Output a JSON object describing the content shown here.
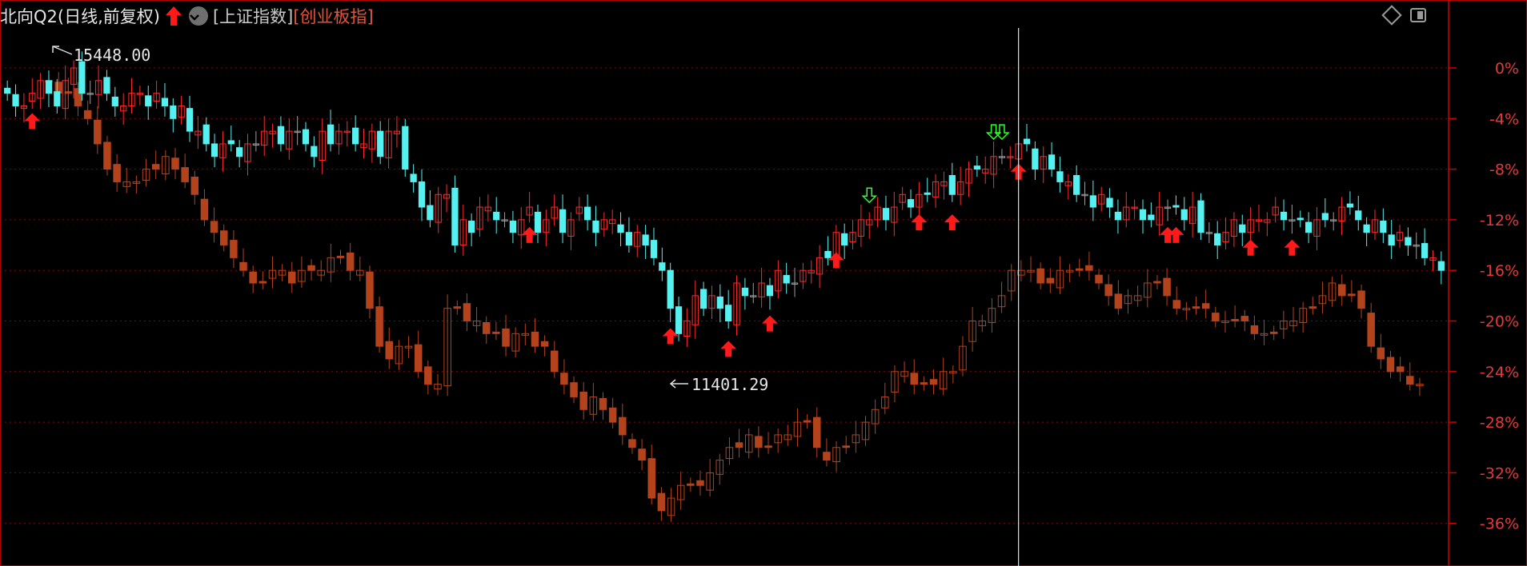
{
  "header": {
    "title": "北向Q2(日线,前复权)",
    "index1": "[上证指数]",
    "index2": "[创业板指]"
  },
  "icons": [
    "arrow-up-icon",
    "dropdown-icon",
    "diamond-icon",
    "panel-icon"
  ],
  "colors": {
    "background": "#000000",
    "grid": "#8b0000",
    "axis": "#cc0000",
    "candle_up": "#ff2a2a",
    "candle_down": "#55f0f0",
    "candle_flat": "#9e9e9e",
    "second_series": "#b4431c",
    "buy_arrow": "#ff1a1a",
    "sell_arrow": "#2cff2c",
    "crosshair": "#e0e0e0"
  },
  "annotations": {
    "high_label": "15448.00",
    "low_label": "11401.29"
  },
  "chart_data": {
    "type": "candlestick",
    "y_axis_labels": [
      "0%",
      "-4%",
      "-8%",
      "-12%",
      "-16%",
      "-20%",
      "-24%",
      "-28%",
      "-32%",
      "-36%"
    ],
    "ylim_percent": [
      -36,
      0
    ],
    "grid": true,
    "series": [
      {
        "kind": "candlestick",
        "close_percent_approx": [
          -2,
          -3,
          -3,
          -2,
          -1,
          -2,
          -3,
          -1,
          0,
          -2,
          -2,
          -1,
          -2,
          -3,
          -3,
          -2,
          -2,
          -3,
          -2,
          -3,
          -4,
          -3,
          -5,
          -5,
          -6,
          -7,
          -6,
          -6,
          -7,
          -6,
          -6,
          -5,
          -5,
          -6,
          -5,
          -5,
          -6,
          -7,
          -5,
          -6,
          -5,
          -5,
          -6,
          -6,
          -5,
          -7,
          -5,
          -5,
          -8,
          -9,
          -11,
          -12,
          -10,
          -10,
          -14,
          -12,
          -13,
          -11,
          -11,
          -12,
          -12,
          -13,
          -12,
          -11,
          -13,
          -12,
          -11,
          -13,
          -12,
          -11,
          -12,
          -13,
          -12,
          -12,
          -13,
          -14,
          -13,
          -14,
          -15,
          -16,
          -19,
          -21,
          -20,
          -18,
          -19,
          -18,
          -19,
          -20,
          -17,
          -18,
          -18,
          -17,
          -18,
          -16,
          -17,
          -17,
          -16,
          -16,
          -15,
          -15,
          -13,
          -14,
          -13,
          -12,
          -12,
          -11,
          -12,
          -11,
          -10,
          -11,
          -10,
          -10,
          -9,
          -9,
          -10,
          -9,
          -8,
          -8,
          -8,
          -7,
          -7,
          -7,
          -6,
          -6,
          -8,
          -7,
          -8,
          -9,
          -9,
          -10,
          -10,
          -11,
          -10,
          -11,
          -12,
          -11,
          -11,
          -12,
          -12,
          -11,
          -11,
          -11,
          -12,
          -11,
          -13,
          -13,
          -14,
          -13,
          -12,
          -13,
          -12,
          -12,
          -12,
          -11,
          -12,
          -12,
          -12,
          -13,
          -12,
          -12,
          -12,
          -11,
          -11,
          -12,
          -13,
          -12,
          -13,
          -14,
          -13,
          -14,
          -14,
          -15,
          -15,
          -16
        ]
      },
      {
        "kind": "second-index",
        "close_percent_approx": [
          -1,
          -2,
          -2,
          -3,
          -4,
          -6,
          -8,
          -9,
          -9,
          -9,
          -8,
          -8,
          -7,
          -8,
          -9,
          -10,
          -12,
          -13,
          -14,
          -15,
          -16,
          -17,
          -17,
          -16,
          -16,
          -17,
          -16,
          -16,
          -16,
          -15,
          -15,
          -16,
          -16,
          -19,
          -22,
          -23,
          -22,
          -22,
          -24,
          -25,
          -25,
          -19,
          -19,
          -20,
          -20,
          -21,
          -21,
          -22,
          -21,
          -21,
          -22,
          -22,
          -24,
          -25,
          -26,
          -27,
          -26,
          -27,
          -28,
          -29,
          -30,
          -31,
          -34,
          -35,
          -34,
          -33,
          -33,
          -33,
          -32,
          -31,
          -30,
          -30,
          -29,
          -30,
          -30,
          -29,
          -29,
          -28,
          -28,
          -30,
          -31,
          -30,
          -30,
          -29,
          -28,
          -27,
          -26,
          -24,
          -24,
          -25,
          -25,
          -25,
          -24,
          -24,
          -22,
          -20,
          -20,
          -19,
          -18,
          -16,
          -16,
          -16,
          -17,
          -17,
          -16,
          -16,
          -16,
          -16,
          -17,
          -18,
          -19,
          -18,
          -18,
          -17,
          -17,
          -18,
          -19,
          -19,
          -19,
          -19,
          -20,
          -20,
          -20,
          -20,
          -21,
          -21,
          -21,
          -20,
          -20,
          -19,
          -19,
          -18,
          -17,
          -18,
          -18,
          -19,
          -22,
          -23,
          -24,
          -24,
          -25,
          -25
        ]
      }
    ],
    "crosshair_bar_index": 122,
    "buy_signal_bar_indices": [
      3,
      63,
      80,
      87,
      92,
      100,
      110,
      114,
      122,
      140,
      141,
      150,
      155
    ],
    "sell_signal_bar_indices": [
      104,
      119,
      120
    ]
  }
}
